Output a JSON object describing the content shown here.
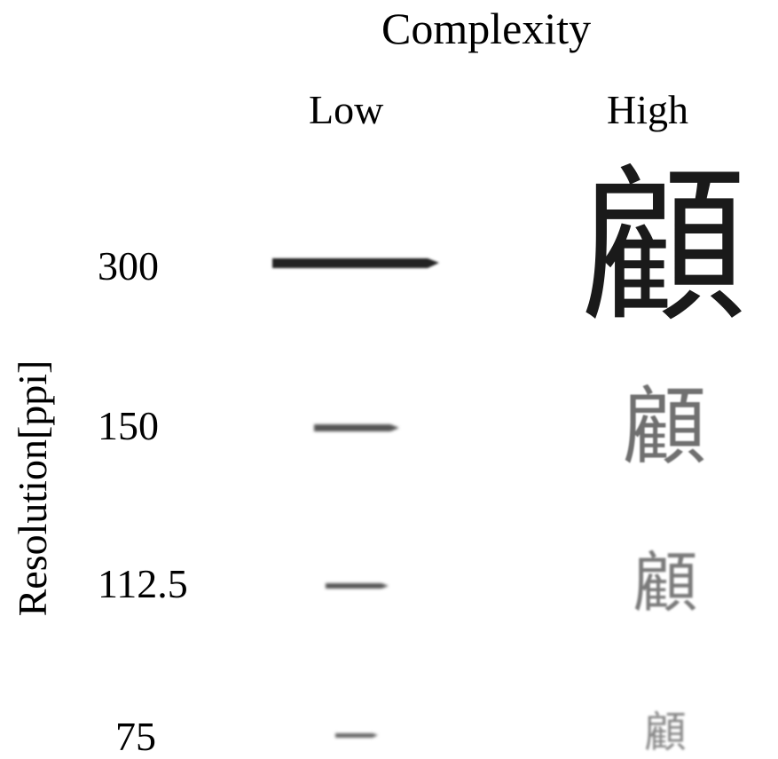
{
  "header": {
    "title": "Complexity",
    "columns": [
      "Low",
      "High"
    ]
  },
  "y_axis": {
    "label": "Resolution[ppi]"
  },
  "rows": [
    {
      "resolution": "300",
      "low_glyph": "一",
      "high_glyph": "顧"
    },
    {
      "resolution": "150",
      "low_glyph": "一",
      "high_glyph": "顧"
    },
    {
      "resolution": "112.5",
      "low_glyph": "一",
      "high_glyph": "顧"
    },
    {
      "resolution": "75",
      "low_glyph": "一",
      "high_glyph": "顧"
    }
  ]
}
